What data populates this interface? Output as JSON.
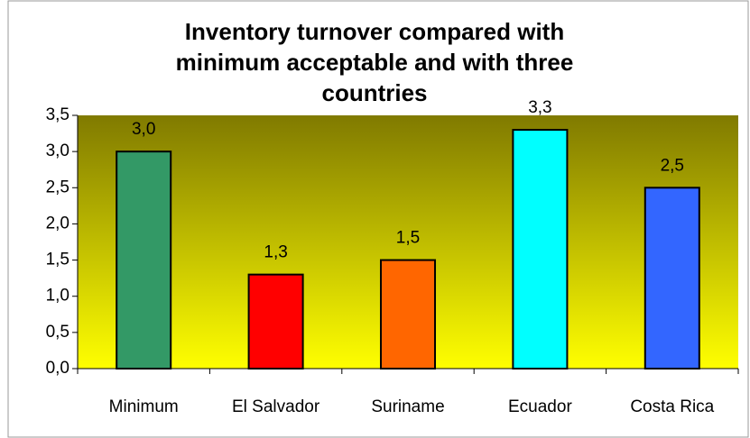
{
  "chart_data": {
    "type": "bar",
    "title": "Inventory turnover compared with minimum acceptable and with three countries",
    "categories": [
      "Minimum",
      "El Salvador",
      "Suriname",
      "Ecuador",
      "Costa Rica"
    ],
    "values": [
      3.0,
      1.3,
      1.5,
      3.3,
      2.5
    ],
    "value_labels": [
      "3,0",
      "1,3",
      "1,5",
      "3,3",
      "2,5"
    ],
    "colors": [
      "#339966",
      "#ff0000",
      "#ff6600",
      "#00ffff",
      "#3366ff"
    ],
    "ylim": [
      0,
      3.5
    ],
    "yticks": [
      {
        "value": 0,
        "label": "0,0"
      },
      {
        "value": 0.5,
        "label": "0,5"
      },
      {
        "value": 1,
        "label": "1,0"
      },
      {
        "value": 1.5,
        "label": "1,5"
      },
      {
        "value": 2,
        "label": "2,0"
      },
      {
        "value": 2.5,
        "label": "2,5"
      },
      {
        "value": 3,
        "label": "3,0"
      },
      {
        "value": 3.5,
        "label": "3,5"
      }
    ]
  }
}
